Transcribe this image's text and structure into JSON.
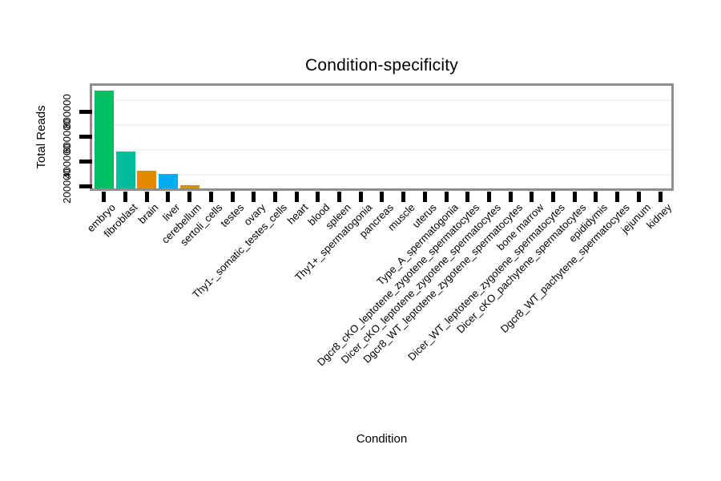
{
  "title": "Condition-specificity",
  "chart_data": {
    "type": "bar",
    "title": "Condition-specificity",
    "xlabel": "Condition",
    "ylabel": "Total Reads",
    "categories": [
      "embryo",
      "fibroblast",
      "brain",
      "liver",
      "cerebellum",
      "sertoli_cells",
      "testes",
      "ovary",
      "Thy1-_somatic_testes_cells",
      "heart",
      "blood",
      "spleen",
      "Thy1+_spermatogonia",
      "pancreas",
      "muscle",
      "uterus",
      "Type_A_spermatogonia",
      "Dgcr8_cKO_leptotene_zygotene_spermatocytes",
      "Dicer_cKO_leptotene_zygotene_spermatocytes",
      "Dgcr8_WT_leptotene_zygotene_spermatocytes",
      "bone marrow",
      "Dicer_WT_leptotene_zygotene_spermatocytes",
      "Dicer_cKO_pachytene_spermatocytes",
      "epididymis",
      "Dgcr8_WT_pachytene_spermatocytes",
      "jejunum",
      "kidney"
    ],
    "values": [
      965000,
      480000,
      320000,
      295000,
      205000,
      0,
      0,
      0,
      0,
      0,
      0,
      0,
      0,
      0,
      0,
      0,
      0,
      0,
      0,
      0,
      0,
      0,
      0,
      0,
      0,
      0,
      0
    ],
    "bar_colors": [
      "#00bf63",
      "#00bd9b",
      "#e18c00",
      "#00aeef",
      "#cd9600",
      null,
      null,
      null,
      null,
      null,
      null,
      null,
      null,
      null,
      null,
      null,
      null,
      null,
      null,
      null,
      null,
      null,
      null,
      null,
      null,
      null,
      null
    ],
    "y_ticks": [
      200000,
      400000,
      600000,
      800000
    ],
    "y_axis_range": [
      180000,
      1010000
    ],
    "minor_gridlines": [
      300000,
      500000,
      700000,
      900000
    ],
    "grid": "faint horizontal minor gridlines",
    "legend": "none",
    "frame_color": "#8e8e8e",
    "tick_color": "#000000",
    "gridline_color": "#f3f3f3",
    "background": "#ffffff"
  }
}
